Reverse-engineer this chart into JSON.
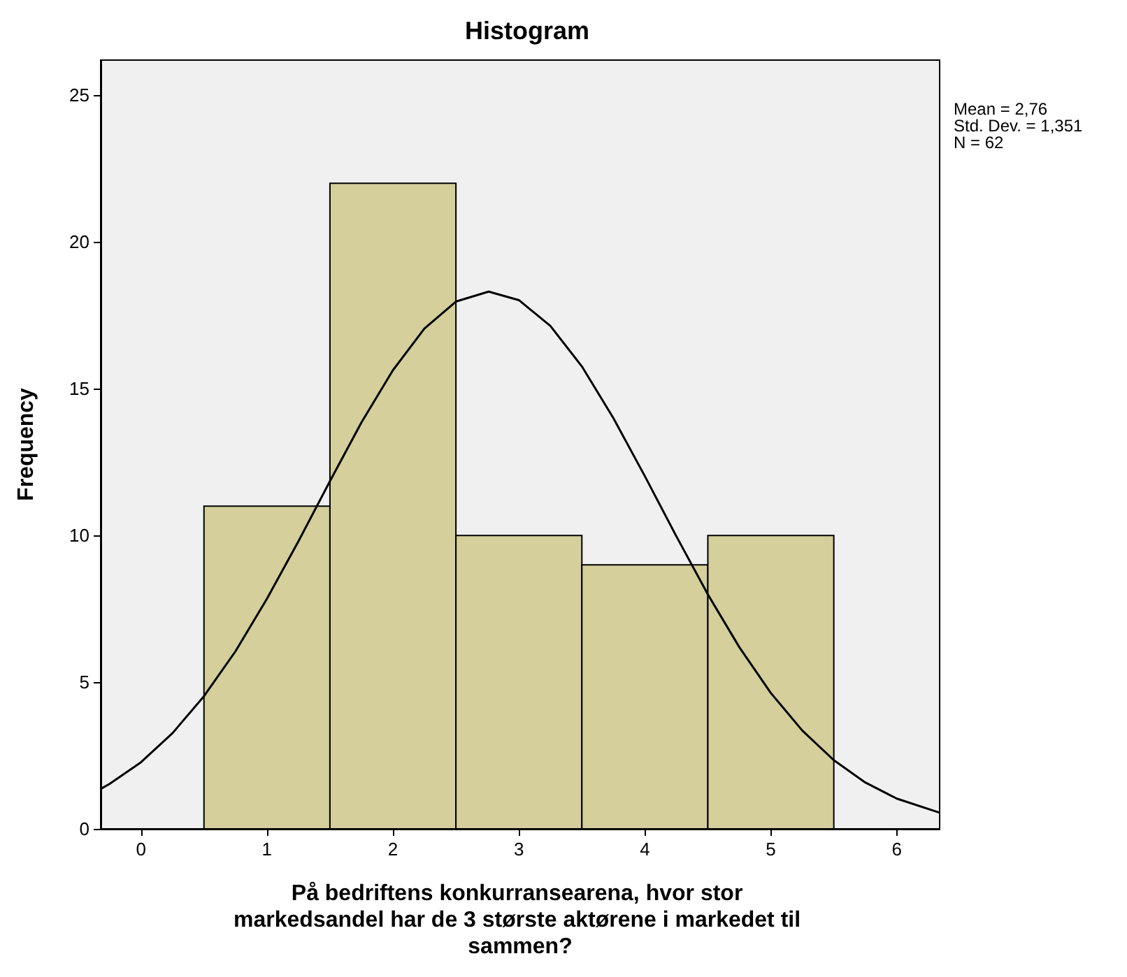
{
  "chart_data": {
    "type": "histogram",
    "title": "Histogram",
    "xlabel": "På bedriftens konkurransearena, hvor stor markedsandel har de 3 største aktørene i markedet til sammen?",
    "ylabel": "Frequency",
    "annotations": [
      "Mean = 2,76",
      "Std. Dev. = 1,351",
      "N = 62"
    ],
    "series": [
      {
        "bins": [
          0.5,
          1.5,
          2.5,
          3.5,
          4.5,
          5.5
        ],
        "values": [
          11,
          22,
          10,
          9,
          10
        ],
        "color": "#d4cf9b"
      },
      {
        "type": "line",
        "color": "#000000",
        "x": [
          -0.32,
          -0.25,
          0,
          0.25,
          0.5,
          0.75,
          1,
          1.25,
          1.5,
          1.75,
          2,
          2.25,
          2.5,
          2.76,
          3,
          3.25,
          3.5,
          3.75,
          4,
          4.25,
          4.5,
          4.75,
          5,
          5.25,
          5.5,
          5.75,
          6,
          6.34
        ],
        "values": [
          1.36,
          1.53,
          2.27,
          3.26,
          4.52,
          6.05,
          7.84,
          9.8,
          11.85,
          13.85,
          15.63,
          17.05,
          17.97,
          18.31,
          18.02,
          17.14,
          15.76,
          14.0,
          12.02,
          9.97,
          7.99,
          6.19,
          4.63,
          3.35,
          2.34,
          1.58,
          1.03,
          0.55
        ]
      }
    ],
    "xlim": [
      -0.32,
      6.34
    ],
    "ylim": [
      0,
      26.2
    ],
    "xticks": [
      0,
      1,
      2,
      3,
      4,
      5,
      6
    ],
    "yticks": [
      0,
      5,
      10,
      15,
      20,
      25
    ],
    "grid": false,
    "marker": "none",
    "line_style": "solid"
  }
}
